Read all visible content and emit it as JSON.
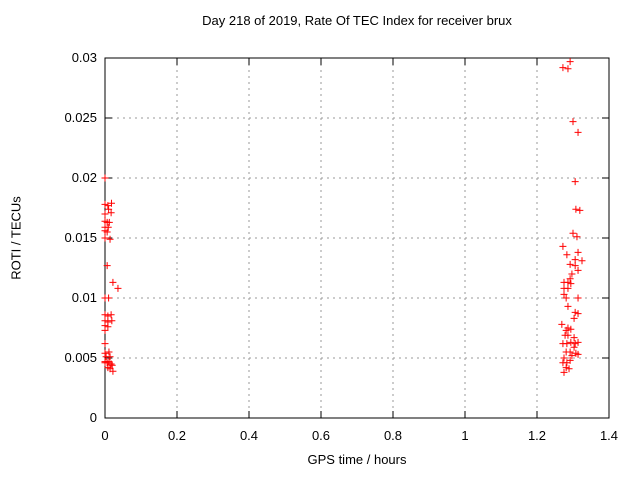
{
  "title": "Day 218 of 2019, Rate Of TEC Index for receiver brux",
  "chart_data": {
    "type": "scatter",
    "title": "Day 218 of 2019, Rate Of TEC Index for receiver brux",
    "xlabel": "GPS time / hours",
    "ylabel": "ROTI / TECUs",
    "xlim": [
      0,
      1.4
    ],
    "ylim": [
      0,
      0.03
    ],
    "x_ticks": [
      0,
      0.2,
      0.4,
      0.6,
      0.8,
      1,
      1.2,
      1.4
    ],
    "x_tick_labels": [
      "0",
      "0.2",
      "0.4",
      "0.6",
      "0.8",
      "1",
      "1.2",
      "1.4"
    ],
    "y_ticks": [
      0,
      0.005,
      0.01,
      0.015,
      0.02,
      0.025,
      0.03
    ],
    "y_tick_labels": [
      "0",
      "0.005",
      "0.01",
      "0.015",
      "0.02",
      "0.025",
      "0.03"
    ],
    "grid": true,
    "legend": "none",
    "marker": "plus",
    "marker_color": "#ff0000",
    "series_name": "ROTI",
    "points": [
      [
        0.0,
        0.02
      ],
      [
        0.0,
        0.0178
      ],
      [
        0.008,
        0.0177
      ],
      [
        0.018,
        0.0179
      ],
      [
        0.01,
        0.0174
      ],
      [
        0.0,
        0.017
      ],
      [
        0.017,
        0.0171
      ],
      [
        0.0,
        0.0164
      ],
      [
        0.006,
        0.0163
      ],
      [
        0.012,
        0.0163
      ],
      [
        0.0,
        0.0159
      ],
      [
        0.009,
        0.0159
      ],
      [
        0.0,
        0.0156
      ],
      [
        0.006,
        0.0155
      ],
      [
        0.0,
        0.015
      ],
      [
        0.014,
        0.0149
      ],
      [
        0.006,
        0.0127
      ],
      [
        0.022,
        0.0113
      ],
      [
        0.036,
        0.0108
      ],
      [
        0.0,
        0.01
      ],
      [
        0.01,
        0.01
      ],
      [
        0.0,
        0.0086
      ],
      [
        0.008,
        0.0085
      ],
      [
        0.017,
        0.0086
      ],
      [
        0.0,
        0.0081
      ],
      [
        0.008,
        0.008
      ],
      [
        0.019,
        0.0081
      ],
      [
        0.0,
        0.0077
      ],
      [
        0.008,
        0.0076
      ],
      [
        0.0,
        0.0073
      ],
      [
        0.0,
        0.0062
      ],
      [
        0.0,
        0.0054
      ],
      [
        0.011,
        0.0055
      ],
      [
        0.003,
        0.0051
      ],
      [
        0.014,
        0.0051
      ],
      [
        0.0,
        0.0047
      ],
      [
        0.011,
        0.0047
      ],
      [
        0.0,
        0.0046
      ],
      [
        0.006,
        0.0046
      ],
      [
        0.017,
        0.0045
      ],
      [
        0.02,
        0.0044
      ],
      [
        0.008,
        0.0042
      ],
      [
        0.014,
        0.0041
      ],
      [
        0.022,
        0.0039
      ],
      [
        1.292,
        0.0297
      ],
      [
        1.272,
        0.0292
      ],
      [
        1.286,
        0.0291
      ],
      [
        1.3,
        0.0247
      ],
      [
        1.314,
        0.0238
      ],
      [
        1.306,
        0.0197
      ],
      [
        1.308,
        0.0174
      ],
      [
        1.319,
        0.0173
      ],
      [
        1.3,
        0.0154
      ],
      [
        1.311,
        0.0151
      ],
      [
        1.272,
        0.0143
      ],
      [
        1.314,
        0.0138
      ],
      [
        1.283,
        0.0136
      ],
      [
        1.306,
        0.0132
      ],
      [
        1.325,
        0.0131
      ],
      [
        1.292,
        0.0128
      ],
      [
        1.306,
        0.0127
      ],
      [
        1.314,
        0.0123
      ],
      [
        1.297,
        0.012
      ],
      [
        1.292,
        0.0116
      ],
      [
        1.275,
        0.0113
      ],
      [
        1.286,
        0.0113
      ],
      [
        1.294,
        0.0112
      ],
      [
        1.275,
        0.0108
      ],
      [
        1.286,
        0.0108
      ],
      [
        1.275,
        0.0103
      ],
      [
        1.281,
        0.01
      ],
      [
        1.314,
        0.01
      ],
      [
        1.286,
        0.0093
      ],
      [
        1.306,
        0.0088
      ],
      [
        1.314,
        0.0087
      ],
      [
        1.303,
        0.0083
      ],
      [
        1.269,
        0.0078
      ],
      [
        1.286,
        0.0075
      ],
      [
        1.294,
        0.0074
      ],
      [
        1.281,
        0.0073
      ],
      [
        1.278,
        0.0069
      ],
      [
        1.286,
        0.0069
      ],
      [
        1.303,
        0.0067
      ],
      [
        1.272,
        0.0062
      ],
      [
        1.283,
        0.0062
      ],
      [
        1.294,
        0.0063
      ],
      [
        1.306,
        0.0062
      ],
      [
        1.314,
        0.0063
      ],
      [
        1.303,
        0.0059
      ],
      [
        1.281,
        0.0055
      ],
      [
        1.292,
        0.0055
      ],
      [
        1.308,
        0.0054
      ],
      [
        1.314,
        0.0053
      ],
      [
        1.297,
        0.0052
      ],
      [
        1.275,
        0.005
      ],
      [
        1.292,
        0.0048
      ],
      [
        1.272,
        0.0046
      ],
      [
        1.283,
        0.0046
      ],
      [
        1.281,
        0.0042
      ],
      [
        1.289,
        0.0041
      ],
      [
        1.275,
        0.0038
      ]
    ]
  }
}
